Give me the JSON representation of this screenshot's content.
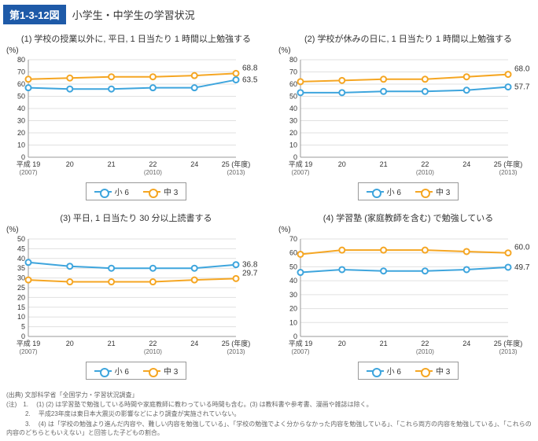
{
  "header": {
    "badge": "第1-3-12図",
    "title": "小学生・中学生の学習状況"
  },
  "xaxis": {
    "labels": [
      "平成 19",
      "20",
      "21",
      "22",
      "24",
      "25 (年度)"
    ],
    "sublabels": [
      "(2007)",
      "",
      "",
      "(2010)",
      "",
      "(2013)"
    ]
  },
  "colors": {
    "s6": "#3ea5dd",
    "s3": "#f5a623",
    "grid": "#e0e0e0",
    "axis": "#999"
  },
  "legend": {
    "s6": "小 6",
    "s3": "中 3"
  },
  "charts": [
    {
      "title": "(1) 学校の授業以外に, 平日, 1 日当たり 1 時間以上勉強する",
      "unit": "(%)",
      "ymin": 0,
      "ymax": 80,
      "ystep": 10,
      "s6": [
        57,
        56,
        56,
        57,
        57,
        63.5
      ],
      "s3": [
        64,
        65,
        66,
        66,
        67,
        68.8
      ],
      "endlabels": {
        "s6": "63.5",
        "s3": "68.8"
      }
    },
    {
      "title": "(2) 学校が休みの日に, 1 日当たり 1 時間以上勉強する",
      "unit": "(%)",
      "ymin": 0,
      "ymax": 80,
      "ystep": 10,
      "s6": [
        53,
        53,
        54,
        54,
        55,
        57.7
      ],
      "s3": [
        62,
        63,
        64,
        64,
        66,
        68.0
      ],
      "endlabels": {
        "s6": "57.7",
        "s3": "68.0"
      }
    },
    {
      "title": "(3) 平日, 1 日当たり 30 分以上読書する",
      "unit": "(%)",
      "ymin": 0,
      "ymax": 50,
      "ystep": 5,
      "s6": [
        38,
        36,
        35,
        35,
        35,
        36.8
      ],
      "s3": [
        29,
        28,
        28,
        28,
        29,
        29.7
      ],
      "endlabels": {
        "s6": "36.8",
        "s3": "29.7"
      }
    },
    {
      "title": "(4) 学習塾 (家庭教師を含む) で勉強している",
      "unit": "(%)",
      "ymin": 0,
      "ymax": 70,
      "ystep": 10,
      "s6": [
        46,
        48,
        47,
        47,
        48,
        49.7
      ],
      "s3": [
        59,
        62,
        62,
        62,
        61,
        60.0
      ],
      "endlabels": {
        "s6": "49.7",
        "s3": "60.0"
      }
    }
  ],
  "footnotes": [
    "(出典) 文部科学省「全国学力・学習状況調査」",
    "(注)　1. 　(1) (2) は学習塾で勉強している時間や家庭教師に教わっている時間も含む。(3) は教科書や参考書、漫画や雑誌は除く。",
    "　　　2. 　平成23年度は東日本大震災の影響などにより調査が実施されていない。",
    "　　　3. 　(4) は「学校の勉強より進んだ内容や、難しい内容を勉強している」、「学校の勉強でよく分からなかった内容を勉強している」、「これら両方の内容を勉強している」、「これらの内容のどちらともいえない」と回答した子どもの割合。"
  ]
}
